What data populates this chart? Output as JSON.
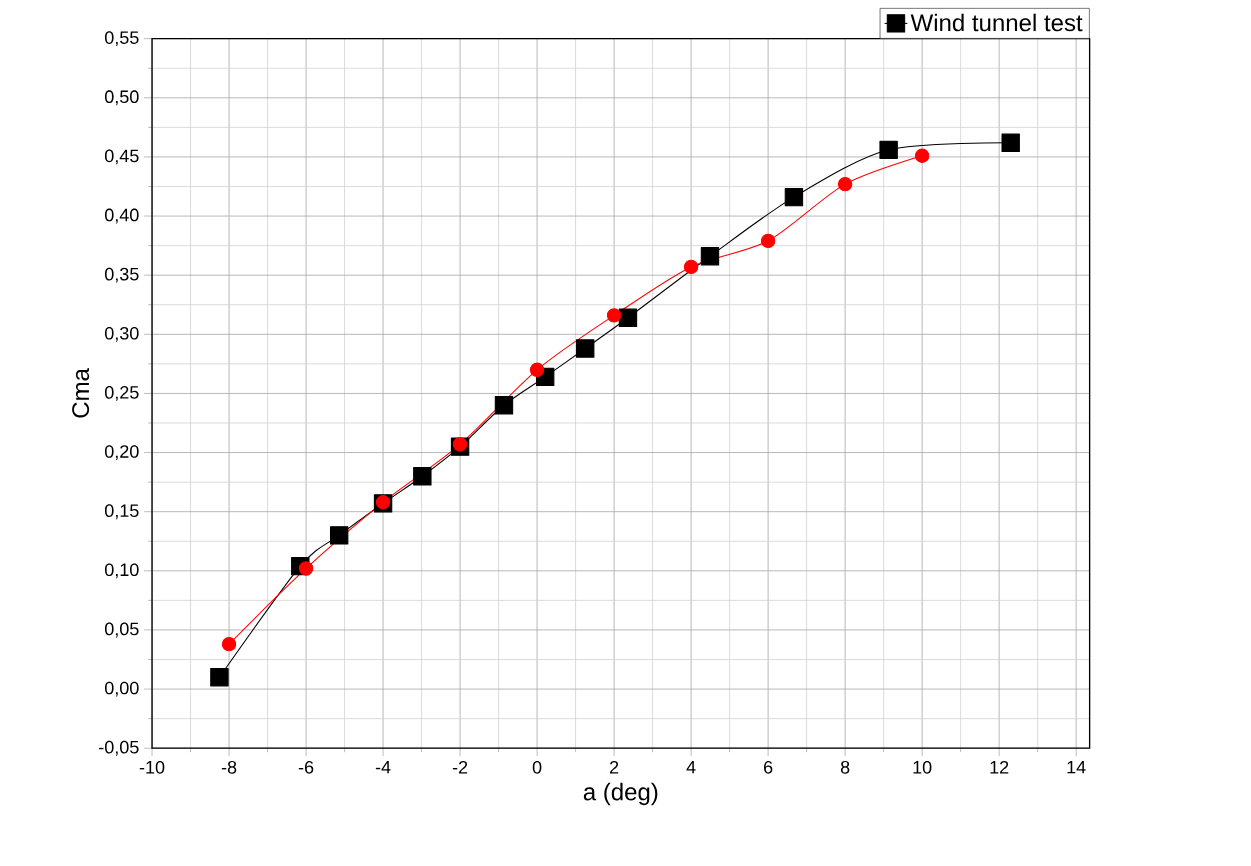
{
  "chart_data": {
    "type": "line",
    "xlabel": "a (deg)",
    "ylabel": "Cma",
    "xlim": [
      -10,
      14.35
    ],
    "ylim": [
      -0.05,
      0.55
    ],
    "xticks": [
      -10,
      -8,
      -6,
      -4,
      -2,
      0,
      2,
      4,
      6,
      8,
      10,
      12,
      14
    ],
    "yticks": [
      {
        "value": -0.05,
        "label": "-0,05"
      },
      {
        "value": 0,
        "label": "0,00"
      },
      {
        "value": 0.05,
        "label": "0,05"
      },
      {
        "value": 0.1,
        "label": "0,10"
      },
      {
        "value": 0.15,
        "label": "0,15"
      },
      {
        "value": 0.2,
        "label": "0,20"
      },
      {
        "value": 0.25,
        "label": "0,25"
      },
      {
        "value": 0.3,
        "label": "0,30"
      },
      {
        "value": 0.35,
        "label": "0,35"
      },
      {
        "value": 0.4,
        "label": "0,40"
      },
      {
        "value": 0.45,
        "label": "0,45"
      },
      {
        "value": 0.5,
        "label": "0,50"
      },
      {
        "value": 0.55,
        "label": "0,55"
      }
    ],
    "grid": true,
    "legend": "top right",
    "line_style": "solid",
    "series": [
      {
        "name": "Wind tunnel test",
        "color": "#000000",
        "marker": "square",
        "x": [
          -8.25,
          -6.15,
          -5.14,
          -4.0,
          -2.98,
          -2.0,
          -0.86,
          0.21,
          1.25,
          2.36,
          4.49,
          6.67,
          9.13,
          12.3
        ],
        "values": [
          0.01,
          0.104,
          0.13,
          0.157,
          0.18,
          0.205,
          0.24,
          0.264,
          0.288,
          0.314,
          0.366,
          0.416,
          0.456,
          0.462
        ]
      },
      {
        "color": "#ff0000",
        "marker": "circle",
        "x": [
          -8,
          -6,
          -4,
          -2,
          0,
          2,
          4,
          6,
          8,
          10
        ],
        "values": [
          0.038,
          0.102,
          0.158,
          0.207,
          0.27,
          0.316,
          0.357,
          0.379,
          0.427,
          0.451
        ]
      }
    ]
  }
}
